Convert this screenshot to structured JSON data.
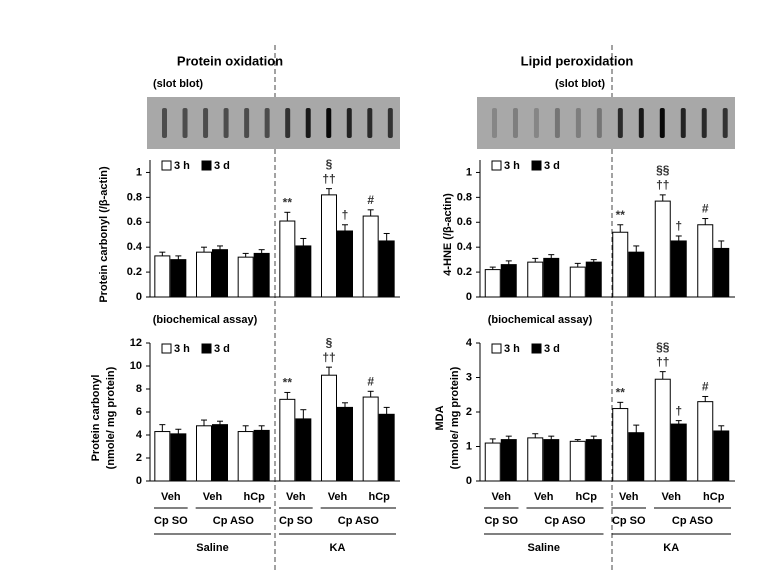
{
  "chart_data": [
    {
      "type": "bar",
      "title": "Protein oxidation",
      "subtitle": "(slot blot)",
      "ylabel": [
        "Protein carbonyl (/β-actin)"
      ],
      "ylim": [
        0,
        1.1
      ],
      "yticks": [
        0,
        0.2,
        0.4,
        0.6,
        0.8,
        1
      ],
      "series": [
        {
          "name": "3 h",
          "color": "#ffffff",
          "values": [
            0.33,
            0.36,
            0.32,
            0.61,
            0.82,
            0.65
          ],
          "errors": [
            0.03,
            0.04,
            0.03,
            0.07,
            0.05,
            0.05
          ],
          "labels": [
            null,
            null,
            null,
            "**",
            "††",
            "#"
          ]
        },
        {
          "name": "3 d",
          "color": "#000000",
          "values": [
            0.3,
            0.38,
            0.35,
            0.41,
            0.53,
            0.45
          ],
          "errors": [
            0.03,
            0.03,
            0.03,
            0.06,
            0.05,
            0.06
          ],
          "labels": [
            null,
            null,
            null,
            null,
            "†",
            null
          ]
        }
      ],
      "top_labels": [
        null,
        null,
        null,
        null,
        "§",
        null
      ]
    },
    {
      "type": "bar",
      "subtitle": "(biochemical assay)",
      "ylabel": [
        "Protein carbonyl",
        "(nmole/ mg protein)"
      ],
      "ylim": [
        0,
        12
      ],
      "yticks": [
        0,
        2,
        4,
        6,
        8,
        10,
        12
      ],
      "categories": [
        "Veh",
        "Veh",
        "hCp",
        "Veh",
        "Veh",
        "hCp"
      ],
      "subgroups": [
        "Cp SO",
        "Cp ASO",
        "Cp SO",
        "Cp ASO"
      ],
      "groups": [
        "Saline",
        "KA"
      ],
      "series": [
        {
          "name": "3 h",
          "color": "#ffffff",
          "values": [
            4.3,
            4.8,
            4.3,
            7.1,
            9.2,
            7.3
          ],
          "errors": [
            0.6,
            0.5,
            0.5,
            0.6,
            0.7,
            0.5
          ],
          "labels": [
            null,
            null,
            null,
            "**",
            "††",
            "#"
          ]
        },
        {
          "name": "3 d",
          "color": "#000000",
          "values": [
            4.1,
            4.9,
            4.4,
            5.4,
            6.4,
            5.8
          ],
          "errors": [
            0.4,
            0.3,
            0.4,
            0.8,
            0.4,
            0.6
          ],
          "labels": [
            null,
            null,
            null,
            null,
            null,
            null
          ]
        }
      ],
      "top_labels": [
        null,
        null,
        null,
        null,
        "§",
        null
      ]
    },
    {
      "type": "bar",
      "title": "Lipid peroxidation",
      "subtitle": "(slot blot)",
      "ylabel": [
        "4-HNE  (/β-actin)"
      ],
      "ylim": [
        0,
        1.1
      ],
      "yticks": [
        0,
        0.2,
        0.4,
        0.6,
        0.8,
        1
      ],
      "series": [
        {
          "name": "3 h",
          "color": "#ffffff",
          "values": [
            0.22,
            0.28,
            0.24,
            0.52,
            0.77,
            0.58
          ],
          "errors": [
            0.02,
            0.03,
            0.03,
            0.06,
            0.05,
            0.05
          ],
          "labels": [
            null,
            null,
            null,
            "**",
            "††",
            "#"
          ]
        },
        {
          "name": "3 d",
          "color": "#000000",
          "values": [
            0.26,
            0.31,
            0.28,
            0.36,
            0.45,
            0.39
          ],
          "errors": [
            0.03,
            0.03,
            0.02,
            0.05,
            0.04,
            0.06
          ],
          "labels": [
            null,
            null,
            null,
            null,
            "†",
            null
          ]
        }
      ],
      "top_labels": [
        null,
        null,
        null,
        null,
        "§§",
        null
      ]
    },
    {
      "type": "bar",
      "subtitle": "(biochemical assay)",
      "ylabel": [
        "MDA",
        "(nmole/ mg protein)"
      ],
      "ylim": [
        0,
        4
      ],
      "yticks": [
        0,
        1,
        2,
        3,
        4
      ],
      "categories": [
        "Veh",
        "Veh",
        "hCp",
        "Veh",
        "Veh",
        "hCp"
      ],
      "subgroups": [
        "Cp SO",
        "Cp ASO",
        "Cp SO",
        "Cp ASO"
      ],
      "groups": [
        "Saline",
        "KA"
      ],
      "series": [
        {
          "name": "3 h",
          "color": "#ffffff",
          "values": [
            1.1,
            1.25,
            1.15,
            2.1,
            2.95,
            2.3
          ],
          "errors": [
            0.12,
            0.12,
            0.05,
            0.18,
            0.22,
            0.15
          ],
          "labels": [
            null,
            null,
            null,
            "**",
            "††",
            "#"
          ]
        },
        {
          "name": "3 d",
          "color": "#000000",
          "values": [
            1.2,
            1.2,
            1.2,
            1.4,
            1.65,
            1.45
          ],
          "errors": [
            0.1,
            0.1,
            0.1,
            0.22,
            0.1,
            0.15
          ],
          "labels": [
            null,
            null,
            null,
            null,
            "†",
            null
          ]
        }
      ],
      "top_labels": [
        null,
        null,
        null,
        null,
        "§§",
        null
      ]
    }
  ]
}
